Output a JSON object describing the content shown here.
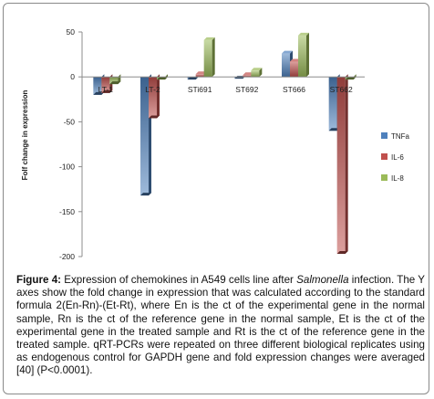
{
  "chart_data": {
    "type": "bar",
    "categories": [
      "LT-1",
      "LT-2",
      "STi691",
      "ST692",
      "ST666",
      "ST662"
    ],
    "series": [
      {
        "name": "TNFa",
        "values": [
          -20,
          -132,
          -3,
          -2,
          26,
          -60
        ],
        "color": "#4f81bd"
      },
      {
        "name": "IL-6",
        "values": [
          -18,
          -46,
          3,
          2,
          17,
          -197
        ],
        "color": "#c0504d"
      },
      {
        "name": "IL-8",
        "values": [
          -8,
          -3,
          41,
          7,
          46,
          -3
        ],
        "color": "#9bbb59"
      }
    ],
    "title": "",
    "xlabel": "",
    "ylabel": "Folf change in expression",
    "ylim": [
      -200,
      50
    ],
    "yticks": [
      50,
      0,
      -50,
      -100,
      -150,
      -200
    ],
    "grid": false,
    "legend_position": "right"
  },
  "caption": {
    "label": "Figure 4:",
    "text_before_italic": " Expression of chemokines in A549 cells line after ",
    "italic": "Salmonella",
    "text_after_italic": " infection. The Y axes show the fold change in expression that was calculated according to the standard formula 2(En-Rn)-(Et-Rt), where En is the ct of the experimental gene in the normal sample, Rn is the ct of the reference gene in the normal sample, Et is the ct of the experimental gene in the treated sample and Rt is the ct of the reference gene in the treated sample. qRT-PCRs were repeated on three different biological replicates using as endogenous control for GAPDH gene and fold expression changes were averaged [40] (P<0.0001)."
  }
}
